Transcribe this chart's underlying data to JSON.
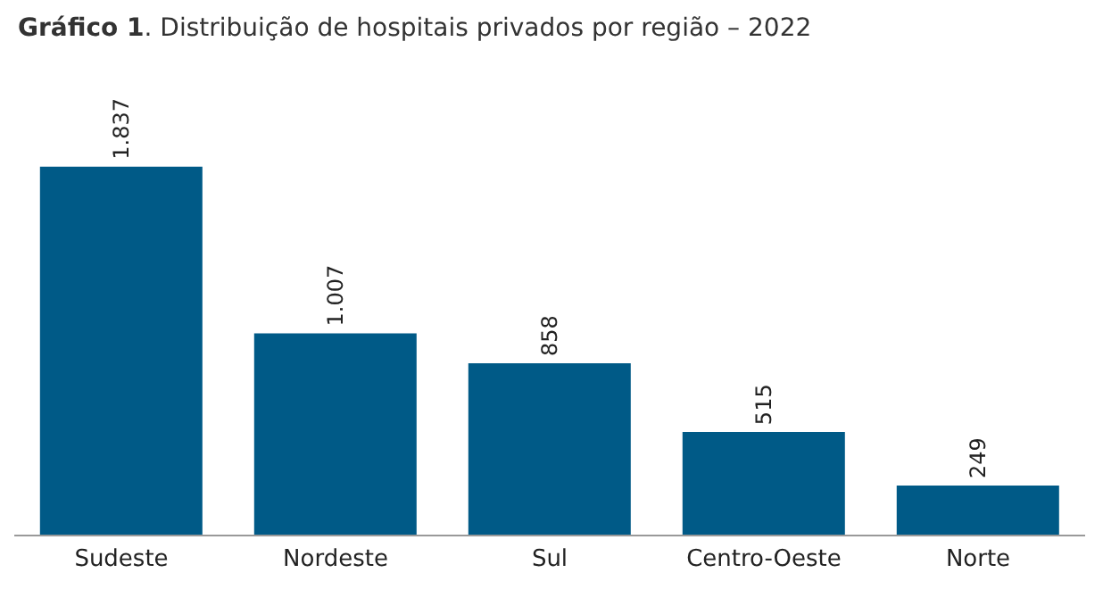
{
  "chart_data": {
    "type": "bar",
    "title": "Gráfico 1. Distribuição de hospitais privados por região – 2022",
    "categories": [
      "Sudeste",
      "Nordeste",
      "Sul",
      "Centro-Oeste",
      "Norte"
    ],
    "values": [
      1837,
      1007,
      858,
      515,
      249
    ],
    "value_labels": [
      "1.837",
      "1.007",
      "858",
      "515",
      "249"
    ],
    "color": "#005a87",
    "grid": false
  }
}
